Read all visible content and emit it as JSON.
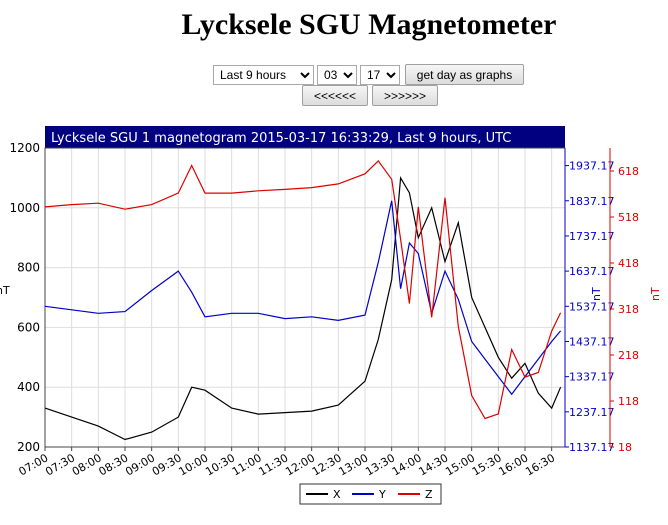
{
  "page": {
    "title": "Lycksele SGU Magnetometer"
  },
  "controls": {
    "range": {
      "selected": "Last 9 hours"
    },
    "month": {
      "selected": "03"
    },
    "day": {
      "selected": "17"
    },
    "graph_button": "get day as graphs",
    "prev_button": "<<<<<<",
    "next_button": ">>>>>>"
  },
  "colors": {
    "x": "#000000",
    "y": "#0000cc",
    "z": "#dd0000",
    "title_bar": "#000080"
  },
  "chart_data": {
    "type": "line",
    "title": "Lycksele SGU 1 magnetogram 2015-03-17 16:33:29, Last 9 hours, UTC",
    "left_axis": {
      "label": "nT",
      "range": [
        200,
        1200
      ],
      "ticks": [
        "1200",
        "1000",
        "800",
        "600",
        "400",
        "200"
      ]
    },
    "right_axis_y": {
      "label": "nT",
      "range": [
        1137.17,
        1987.17
      ],
      "ticks": [
        "1937.17",
        "1837.17",
        "1737.17",
        "1637.17",
        "1537.17",
        "1437.17",
        "1337.17",
        "1237.17",
        "1137.17"
      ]
    },
    "right_axis_z": {
      "label": "nT",
      "range": [
        18,
        668
      ],
      "ticks": [
        "618",
        "518",
        "418",
        "318",
        "218",
        "118",
        "18"
      ]
    },
    "x_axis": {
      "range": [
        "07:00",
        "16:45"
      ],
      "ticks": [
        "07:00",
        "07:30",
        "08:00",
        "08:30",
        "09:00",
        "09:30",
        "10:00",
        "10:30",
        "11:00",
        "11:30",
        "12:00",
        "12:30",
        "13:00",
        "13:30",
        "14:00",
        "14:30",
        "15:00",
        "15:30",
        "16:00",
        "16:30"
      ]
    },
    "grid": true,
    "legend": {
      "position": "bottom-center"
    },
    "series": [
      {
        "name": "X",
        "color": "#000000",
        "x": [
          "07:00",
          "07:30",
          "08:00",
          "08:30",
          "09:00",
          "09:30",
          "09:45",
          "10:00",
          "10:30",
          "11:00",
          "11:30",
          "12:00",
          "12:30",
          "13:00",
          "13:15",
          "13:30",
          "13:40",
          "13:50",
          "14:00",
          "14:15",
          "14:30",
          "14:45",
          "15:00",
          "15:15",
          "15:30",
          "15:45",
          "16:00",
          "16:15",
          "16:30",
          "16:40"
        ],
        "values": [
          330,
          300,
          270,
          225,
          250,
          300,
          400,
          390,
          330,
          310,
          315,
          320,
          340,
          420,
          560,
          760,
          1100,
          1050,
          900,
          1000,
          820,
          950,
          700,
          600,
          500,
          430,
          480,
          380,
          330,
          400
        ]
      },
      {
        "name": "Y",
        "color": "#0000cc",
        "x": [
          "07:00",
          "07:30",
          "08:00",
          "08:30",
          "09:00",
          "09:30",
          "09:45",
          "10:00",
          "10:30",
          "11:00",
          "11:30",
          "12:00",
          "12:30",
          "13:00",
          "13:15",
          "13:30",
          "13:40",
          "13:50",
          "14:00",
          "14:15",
          "14:30",
          "14:45",
          "15:00",
          "15:15",
          "15:30",
          "15:45",
          "16:00",
          "16:15",
          "16:30",
          "16:40"
        ],
        "values": [
          1537.17,
          1527.17,
          1517.17,
          1522.17,
          1582.17,
          1637.17,
          1577.17,
          1507.17,
          1517.17,
          1517.17,
          1502.17,
          1507.17,
          1497.17,
          1512.17,
          1662.17,
          1837.17,
          1587.17,
          1717.17,
          1687.17,
          1517.17,
          1637.17,
          1557.17,
          1437.17,
          1387.17,
          1337.17,
          1287.17,
          1337.17,
          1387.17,
          1437.17,
          1467.17
        ]
      },
      {
        "name": "Z",
        "color": "#dd0000",
        "x": [
          "07:00",
          "07:30",
          "08:00",
          "08:30",
          "09:00",
          "09:30",
          "09:45",
          "10:00",
          "10:30",
          "11:00",
          "11:30",
          "12:00",
          "12:30",
          "13:00",
          "13:15",
          "13:30",
          "13:40",
          "13:50",
          "14:00",
          "14:15",
          "14:30",
          "14:45",
          "15:00",
          "15:15",
          "15:30",
          "15:45",
          "16:00",
          "16:15",
          "16:30",
          "16:40"
        ],
        "values": [
          540,
          545,
          548,
          535,
          545,
          570,
          630,
          570,
          570,
          575,
          578,
          582,
          590,
          612,
          640,
          600,
          470,
          330,
          540,
          300,
          560,
          280,
          130,
          80,
          90,
          230,
          170,
          180,
          270,
          310
        ]
      }
    ]
  }
}
